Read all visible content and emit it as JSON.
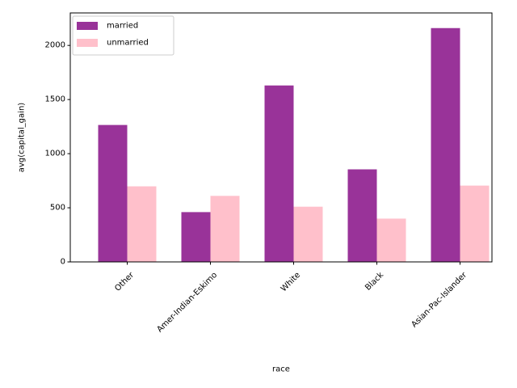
{
  "chart_data": {
    "type": "bar",
    "title": "",
    "xlabel": "race",
    "ylabel": "avg(capital_gain)",
    "categories": [
      "Other",
      "Amer-Indian-Eskimo",
      "White",
      "Black",
      "Asian-Pac-Islander"
    ],
    "series": [
      {
        "name": "married",
        "values": [
          1265,
          460,
          1630,
          855,
          2160
        ],
        "color": "#993399"
      },
      {
        "name": "unmarried",
        "values": [
          698,
          610,
          510,
          400,
          705
        ],
        "color": "#ffc0cb"
      }
    ],
    "ylim": [
      0,
      2300
    ],
    "yticks": [
      0,
      500,
      1000,
      1500,
      2000
    ],
    "xtick_rotation": 45,
    "grid": false,
    "legend_position": "top-left"
  }
}
